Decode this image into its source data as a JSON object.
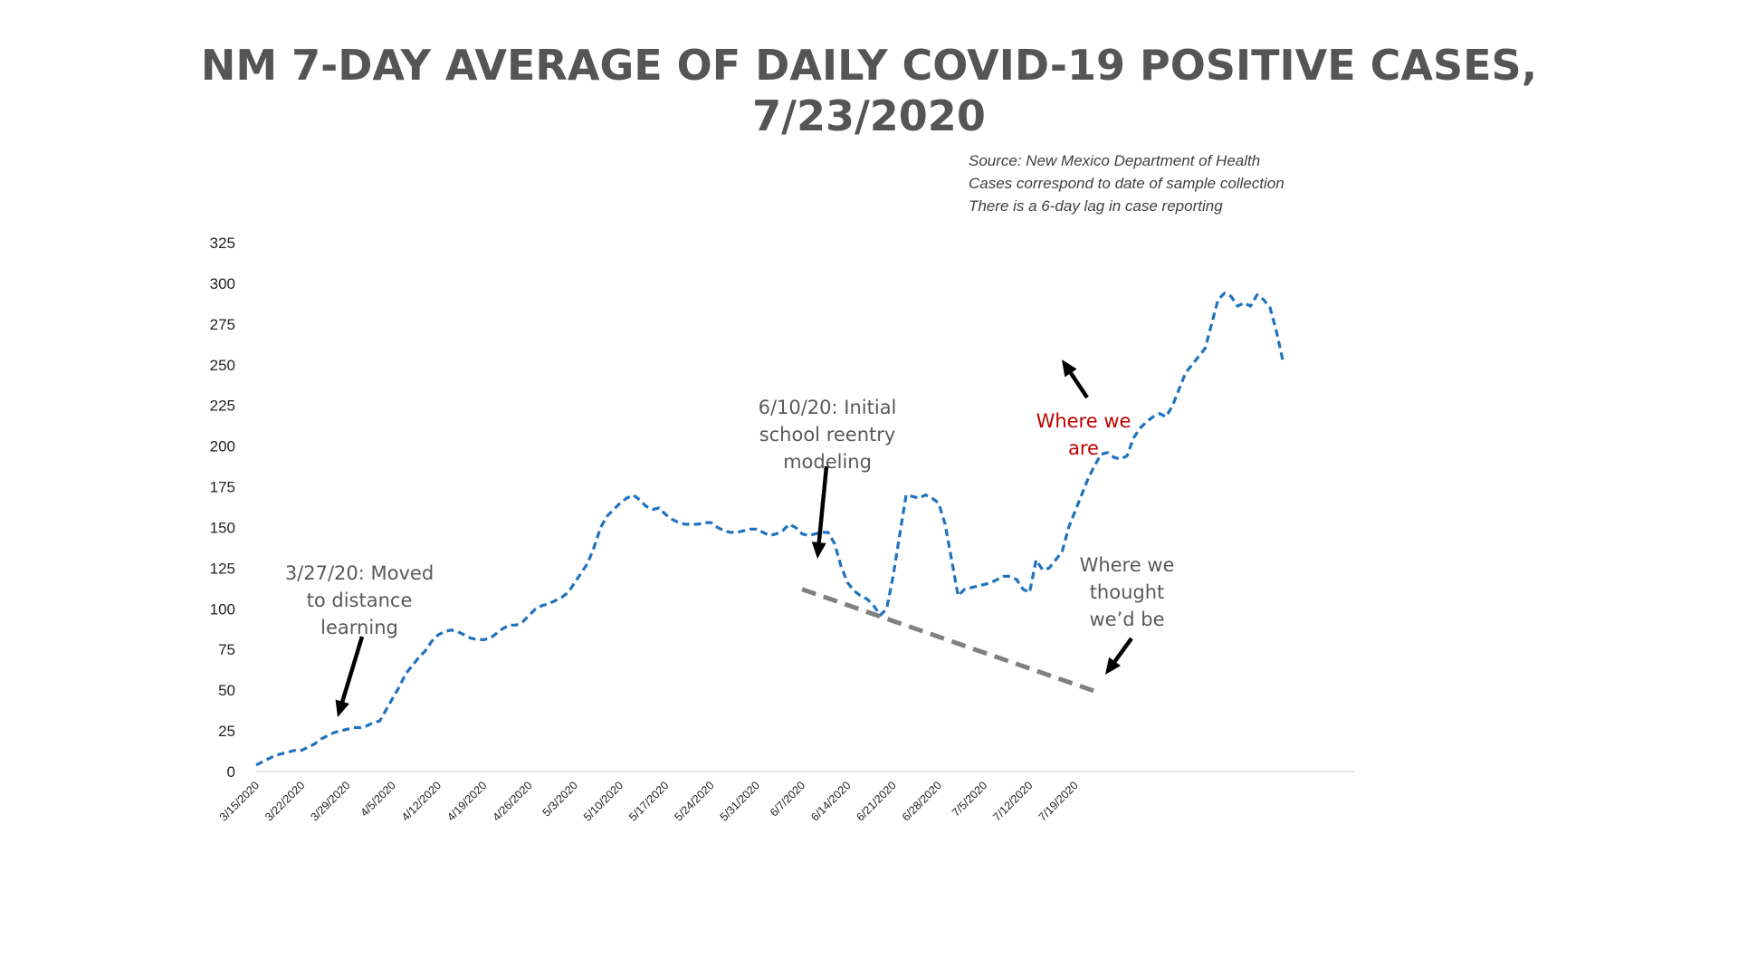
{
  "chart_data": {
    "type": "line",
    "title": [
      "NM 7-DAY AVERAGE OF DAILY COVID-19 POSITIVE CASES,",
      "7/23/2020"
    ],
    "notes": [
      "Source: New Mexico Department of Health",
      "Cases correspond to date of sample collection",
      "There is a 6-day lag in case reporting"
    ],
    "xlabel": "",
    "ylabel": "",
    "ylim": [
      0,
      325
    ],
    "yticks": [
      "0",
      "25",
      "50",
      "75",
      "100",
      "125",
      "150",
      "175",
      "200",
      "225",
      "250",
      "275",
      "300",
      "325"
    ],
    "xticks": [
      "3/15/2020",
      "3/22/2020",
      "3/29/2020",
      "4/5/2020",
      "4/12/2020",
      "4/19/2020",
      "4/26/2020",
      "5/3/2020",
      "5/10/2020",
      "5/17/2020",
      "5/24/2020",
      "5/31/2020",
      "6/7/2020",
      "6/14/2020",
      "6/21/2020",
      "6/28/2020",
      "7/5/2020",
      "7/12/2020",
      "7/19/2020"
    ],
    "x_start_date": "3/15/2020",
    "grid": false,
    "colors": {
      "actual": "#1f72c0",
      "projected": "#808080",
      "annotation": "#595959",
      "highlight": "#c00000",
      "title": "#555555"
    },
    "series": [
      {
        "style": "dashed",
        "values": [
          4,
          6,
          8,
          10,
          11,
          12,
          13,
          13,
          15,
          17,
          20,
          22,
          24,
          25,
          26,
          27,
          27,
          28,
          30,
          31,
          38,
          45,
          52,
          60,
          65,
          70,
          74,
          80,
          84,
          86,
          87,
          86,
          84,
          82,
          81,
          81,
          82,
          85,
          88,
          90,
          90,
          92,
          96,
          100,
          102,
          103,
          105,
          107,
          110,
          116,
          122,
          128,
          138,
          150,
          157,
          161,
          165,
          168,
          170,
          167,
          163,
          161,
          162,
          158,
          155,
          153,
          152,
          152,
          152,
          153,
          153,
          150,
          148,
          147,
          147,
          148,
          149,
          149,
          147,
          145,
          146,
          148,
          152,
          150,
          146,
          145,
          146,
          147,
          147,
          140,
          126,
          116,
          111,
          108,
          106,
          102,
          96,
          100,
          120,
          145,
          170,
          169,
          168,
          170,
          168,
          165,
          152,
          130,
          108,
          112,
          113,
          114,
          115,
          116,
          118,
          120,
          120,
          118,
          112,
          110,
          130,
          124,
          125,
          130,
          135,
          150,
          160,
          170,
          180,
          188,
          195,
          196,
          193,
          192,
          194,
          205,
          211,
          215,
          218,
          220,
          218,
          225,
          235,
          245,
          250,
          255,
          260,
          275,
          290,
          294,
          292,
          286,
          288,
          286,
          293,
          290,
          285,
          270,
          252
        ]
      },
      {
        "style": "dashed",
        "values": [
          {
            "x": 84,
            "y": 112
          },
          {
            "x": 130,
            "y": 48
          }
        ]
      }
    ],
    "annotations": [
      {
        "lines": [
          "3/27/20: Moved",
          "to distance",
          "learning"
        ],
        "at_x": 12,
        "at_y": 32
      },
      {
        "lines": [
          "6/10/20: Initial",
          "school reentry",
          "modeling"
        ],
        "at_x": 87,
        "at_y": 128
      },
      {
        "lines": [
          "Where we",
          "are"
        ],
        "at_x": 131,
        "at_y": 253,
        "highlight": true
      },
      {
        "lines": [
          "Where we",
          "thought",
          "we’d be"
        ],
        "at_x": 129,
        "at_y": 57
      }
    ]
  }
}
